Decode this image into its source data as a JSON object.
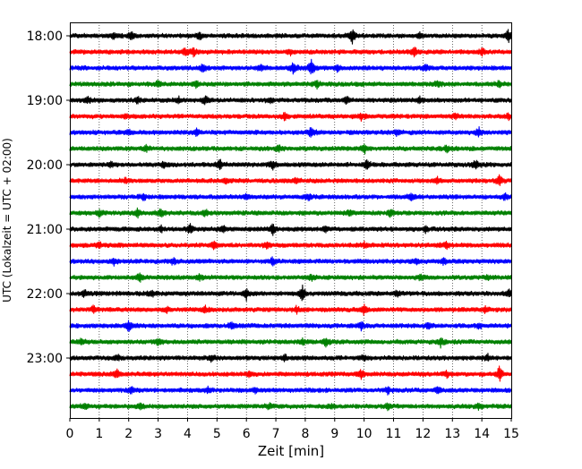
{
  "chart_data": {
    "type": "line",
    "xlabel": "Zeit  [min]",
    "ylabel": "UTC (Lokalzeit = UTC + 02:00)",
    "xlim": [
      0,
      15
    ],
    "x_ticks": [
      "0",
      "1",
      "2",
      "3",
      "4",
      "5",
      "6",
      "7",
      "8",
      "9",
      "10",
      "11",
      "12",
      "13",
      "14",
      "15"
    ],
    "y_ticks": [
      "18:00",
      "19:00",
      "20:00",
      "21:00",
      "22:00",
      "23:00"
    ],
    "grid": "vertical dotted lines at each minute",
    "trace_colors": [
      "#000000",
      "#ff0000",
      "#0000ff",
      "#008000"
    ],
    "traces": [
      {
        "start": "18:00",
        "color": "#000000",
        "spikes": [
          [
            1.5,
            3
          ],
          [
            2.1,
            4
          ],
          [
            4.4,
            3
          ],
          [
            9.6,
            9
          ],
          [
            11.9,
            3
          ],
          [
            14.9,
            7
          ]
        ]
      },
      {
        "start": "18:15",
        "color": "#ff0000",
        "spikes": [
          [
            3.9,
            4
          ],
          [
            4.2,
            4
          ],
          [
            7.5,
            3
          ],
          [
            11.7,
            5
          ],
          [
            14.0,
            3
          ]
        ]
      },
      {
        "start": "18:30",
        "color": "#0000ff",
        "spikes": [
          [
            4.5,
            4
          ],
          [
            6.5,
            3
          ],
          [
            7.6,
            7
          ],
          [
            8.2,
            8
          ],
          [
            9.1,
            3
          ],
          [
            12.1,
            3
          ]
        ]
      },
      {
        "start": "18:45",
        "color": "#008000",
        "spikes": [
          [
            3.0,
            3
          ],
          [
            4.3,
            3
          ],
          [
            8.4,
            4
          ],
          [
            12.5,
            3
          ],
          [
            14.6,
            3
          ]
        ]
      },
      {
        "start": "19:00",
        "color": "#000000",
        "spikes": [
          [
            0.6,
            3
          ],
          [
            2.3,
            4
          ],
          [
            3.7,
            3
          ],
          [
            4.6,
            5
          ],
          [
            6.8,
            3
          ],
          [
            9.4,
            3
          ],
          [
            11.9,
            3
          ]
        ]
      },
      {
        "start": "19:15",
        "color": "#ff0000",
        "spikes": [
          [
            1.9,
            3
          ],
          [
            7.3,
            3
          ],
          [
            9.9,
            3
          ],
          [
            13.1,
            3
          ],
          [
            14.9,
            3
          ]
        ]
      },
      {
        "start": "19:30",
        "color": "#0000ff",
        "spikes": [
          [
            2.0,
            3
          ],
          [
            4.3,
            3
          ],
          [
            8.2,
            6
          ],
          [
            11.1,
            3
          ],
          [
            13.9,
            5
          ]
        ]
      },
      {
        "start": "19:45",
        "color": "#008000",
        "spikes": [
          [
            2.6,
            3
          ],
          [
            7.1,
            4
          ],
          [
            10.0,
            6
          ],
          [
            12.8,
            3
          ]
        ]
      },
      {
        "start": "20:00",
        "color": "#000000",
        "spikes": [
          [
            1.4,
            3
          ],
          [
            3.2,
            3
          ],
          [
            5.1,
            5
          ],
          [
            6.9,
            5
          ],
          [
            10.1,
            6
          ],
          [
            13.8,
            5
          ]
        ]
      },
      {
        "start": "20:15",
        "color": "#ff0000",
        "spikes": [
          [
            1.9,
            3
          ],
          [
            5.3,
            3
          ],
          [
            7.7,
            3
          ],
          [
            12.5,
            3
          ],
          [
            14.6,
            6
          ]
        ]
      },
      {
        "start": "20:30",
        "color": "#0000ff",
        "spikes": [
          [
            2.5,
            3
          ],
          [
            6.0,
            3
          ],
          [
            8.1,
            3
          ],
          [
            11.6,
            5
          ],
          [
            14.8,
            3
          ]
        ]
      },
      {
        "start": "20:45",
        "color": "#008000",
        "spikes": [
          [
            1.0,
            3
          ],
          [
            2.3,
            4
          ],
          [
            3.1,
            5
          ],
          [
            4.6,
            4
          ],
          [
            9.5,
            3
          ],
          [
            10.9,
            4
          ]
        ]
      },
      {
        "start": "21:00",
        "color": "#000000",
        "spikes": [
          [
            3.1,
            3
          ],
          [
            4.1,
            5
          ],
          [
            5.2,
            3
          ],
          [
            6.9,
            6
          ],
          [
            8.7,
            3
          ],
          [
            12.1,
            3
          ]
        ]
      },
      {
        "start": "21:15",
        "color": "#ff0000",
        "spikes": [
          [
            1.0,
            3
          ],
          [
            4.9,
            4
          ],
          [
            6.7,
            3
          ],
          [
            10.0,
            3
          ],
          [
            12.8,
            4
          ]
        ]
      },
      {
        "start": "21:30",
        "color": "#0000ff",
        "spikes": [
          [
            1.5,
            3
          ],
          [
            3.5,
            3
          ],
          [
            6.9,
            4
          ],
          [
            11.8,
            3
          ],
          [
            12.7,
            3
          ]
        ]
      },
      {
        "start": "21:45",
        "color": "#008000",
        "spikes": [
          [
            2.4,
            5
          ],
          [
            4.4,
            3
          ],
          [
            8.2,
            3
          ],
          [
            11.9,
            3
          ],
          [
            14.2,
            3
          ]
        ]
      },
      {
        "start": "22:00",
        "color": "#000000",
        "spikes": [
          [
            0.5,
            4
          ],
          [
            2.8,
            3
          ],
          [
            6.0,
            6
          ],
          [
            7.9,
            9
          ],
          [
            11.1,
            3
          ],
          [
            14.9,
            4
          ]
        ]
      },
      {
        "start": "22:15",
        "color": "#ff0000",
        "spikes": [
          [
            0.8,
            3
          ],
          [
            3.3,
            3
          ],
          [
            4.6,
            4
          ],
          [
            7.7,
            3
          ],
          [
            10.0,
            5
          ],
          [
            14.1,
            3
          ]
        ]
      },
      {
        "start": "22:30",
        "color": "#0000ff",
        "spikes": [
          [
            2.0,
            6
          ],
          [
            5.5,
            4
          ],
          [
            9.9,
            4
          ],
          [
            12.2,
            3
          ],
          [
            13.9,
            3
          ]
        ]
      },
      {
        "start": "22:45",
        "color": "#008000",
        "spikes": [
          [
            0.4,
            3
          ],
          [
            3.0,
            3
          ],
          [
            7.9,
            3
          ],
          [
            8.7,
            4
          ],
          [
            12.6,
            5
          ]
        ]
      },
      {
        "start": "23:00",
        "color": "#000000",
        "spikes": [
          [
            1.6,
            3
          ],
          [
            4.8,
            3
          ],
          [
            7.3,
            3
          ],
          [
            10.0,
            3
          ],
          [
            14.2,
            3
          ]
        ]
      },
      {
        "start": "23:15",
        "color": "#ff0000",
        "spikes": [
          [
            1.6,
            4
          ],
          [
            6.1,
            3
          ],
          [
            9.9,
            5
          ],
          [
            12.8,
            3
          ],
          [
            14.6,
            8
          ]
        ]
      },
      {
        "start": "23:30",
        "color": "#0000ff",
        "spikes": [
          [
            2.1,
            3
          ],
          [
            4.7,
            3
          ],
          [
            6.3,
            3
          ],
          [
            10.8,
            3
          ],
          [
            12.5,
            5
          ]
        ]
      },
      {
        "start": "23:45",
        "color": "#008000",
        "spikes": [
          [
            0.5,
            3
          ],
          [
            2.4,
            4
          ],
          [
            6.8,
            3
          ],
          [
            8.9,
            3
          ],
          [
            10.8,
            3
          ],
          [
            13.9,
            3
          ]
        ]
      }
    ]
  }
}
